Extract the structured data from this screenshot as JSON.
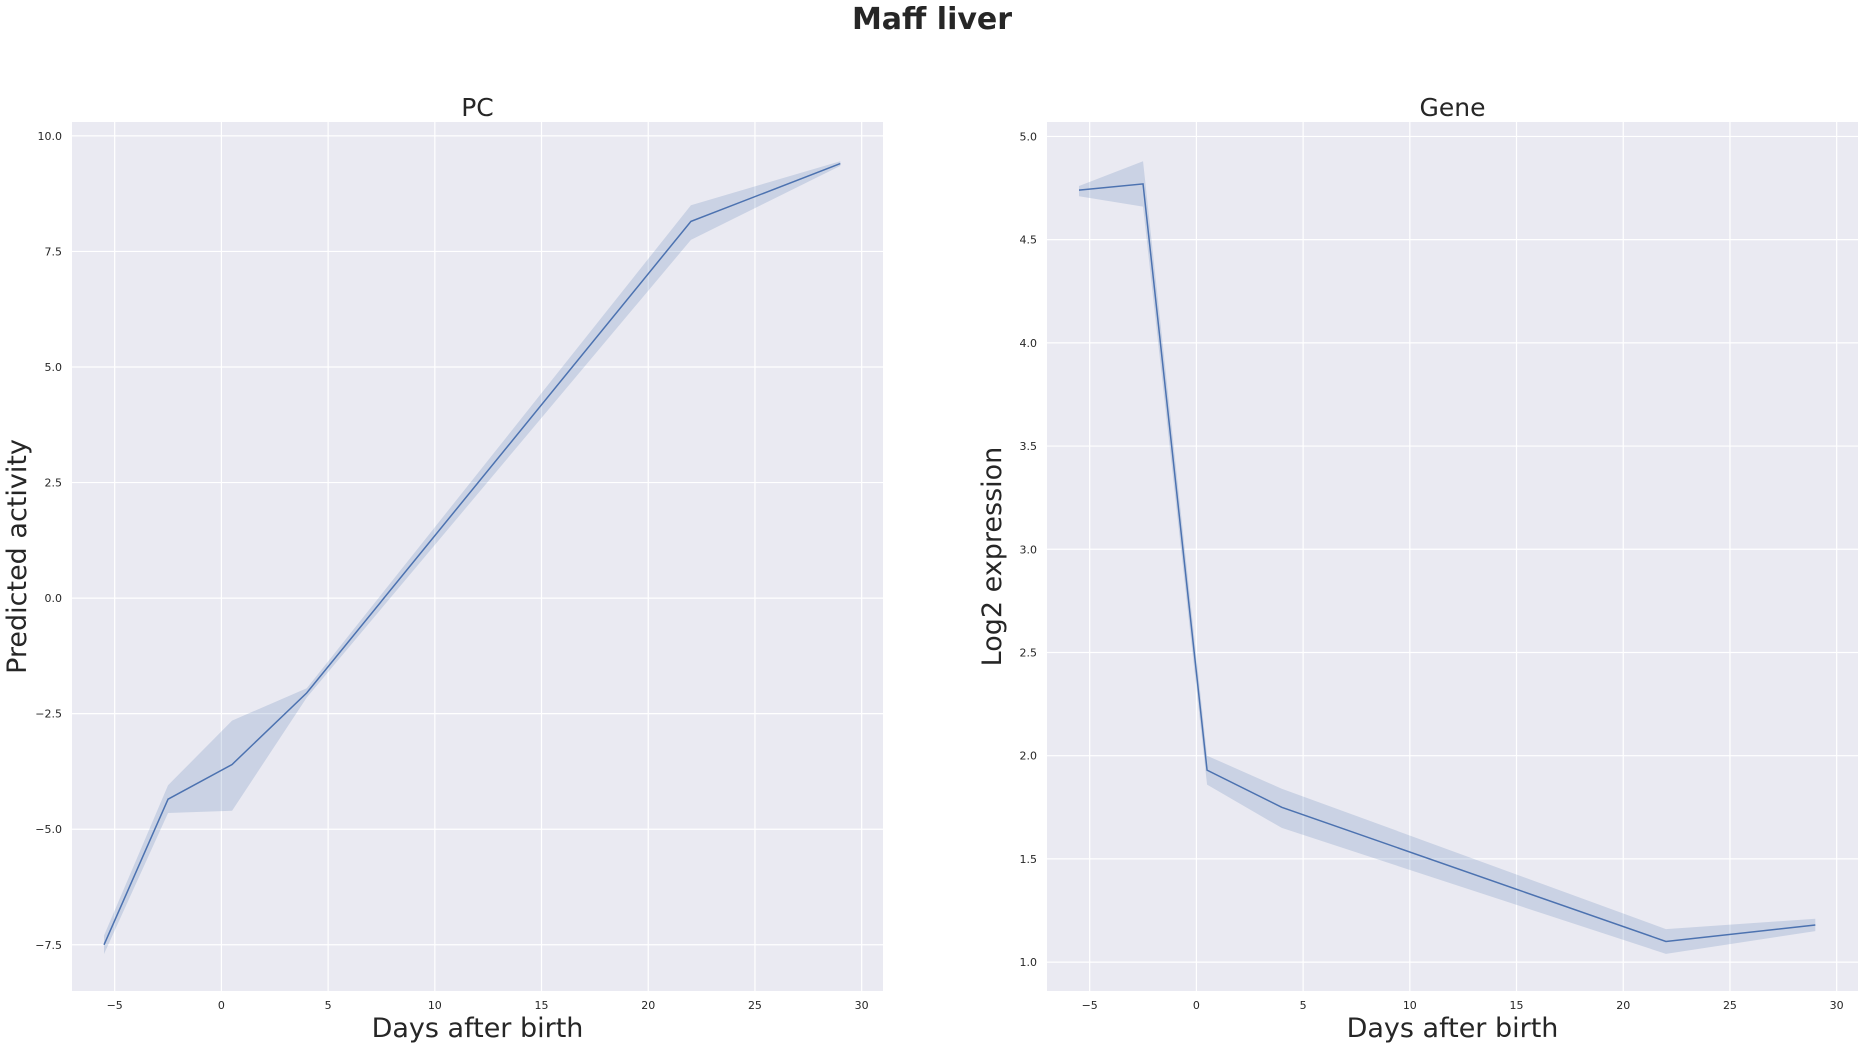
{
  "figure": {
    "title": "Maff liver"
  },
  "chart_data": [
    {
      "type": "line",
      "title": "PC",
      "xlabel": "Days after birth",
      "ylabel": "Predicted activity",
      "xlim": [
        -7,
        31
      ],
      "ylim": [
        -8.5,
        10.3
      ],
      "xticks": [
        -5,
        0,
        5,
        10,
        15,
        20,
        25,
        30
      ],
      "xtick_labels": [
        "−5",
        "0",
        "5",
        "10",
        "15",
        "20",
        "25",
        "30"
      ],
      "yticks": [
        -7.5,
        -5.0,
        -2.5,
        0.0,
        2.5,
        5.0,
        7.5,
        10.0
      ],
      "ytick_labels": [
        "−7.5",
        "−5.0",
        "−2.5",
        "0.0",
        "2.5",
        "5.0",
        "7.5",
        "10.0"
      ],
      "grid": true,
      "background": "#eaeaf2",
      "line_color": "#4c72b0",
      "series": [
        {
          "x": [
            -5.5,
            -2.5,
            0.5,
            4,
            22,
            29
          ],
          "y": [
            -7.5,
            -4.35,
            -3.6,
            -2.05,
            8.15,
            9.4
          ],
          "lower": [
            -7.7,
            -4.65,
            -4.6,
            -2.15,
            7.75,
            9.35
          ],
          "upper": [
            -7.3,
            -4.05,
            -2.65,
            -1.95,
            8.5,
            9.45
          ]
        }
      ]
    },
    {
      "type": "line",
      "title": "Gene",
      "xlabel": "Days after birth",
      "ylabel": "Log2 expression",
      "xlim": [
        -7,
        31
      ],
      "ylim": [
        0.86,
        5.07
      ],
      "xticks": [
        -5,
        0,
        5,
        10,
        15,
        20,
        25,
        30
      ],
      "xtick_labels": [
        "−5",
        "0",
        "5",
        "10",
        "15",
        "20",
        "25",
        "30"
      ],
      "yticks": [
        1.0,
        1.5,
        2.0,
        2.5,
        3.0,
        3.5,
        4.0,
        4.5,
        5.0
      ],
      "ytick_labels": [
        "1.0",
        "1.5",
        "2.0",
        "2.5",
        "3.0",
        "3.5",
        "4.0",
        "4.5",
        "5.0"
      ],
      "grid": true,
      "background": "#eaeaf2",
      "line_color": "#4c72b0",
      "series": [
        {
          "x": [
            -5.5,
            -2.5,
            0.5,
            4,
            22,
            29
          ],
          "y": [
            4.74,
            4.77,
            1.93,
            1.75,
            1.1,
            1.18
          ],
          "lower": [
            4.71,
            4.66,
            1.86,
            1.65,
            1.04,
            1.15
          ],
          "upper": [
            4.76,
            4.88,
            2.0,
            1.84,
            1.16,
            1.21
          ]
        }
      ]
    }
  ]
}
